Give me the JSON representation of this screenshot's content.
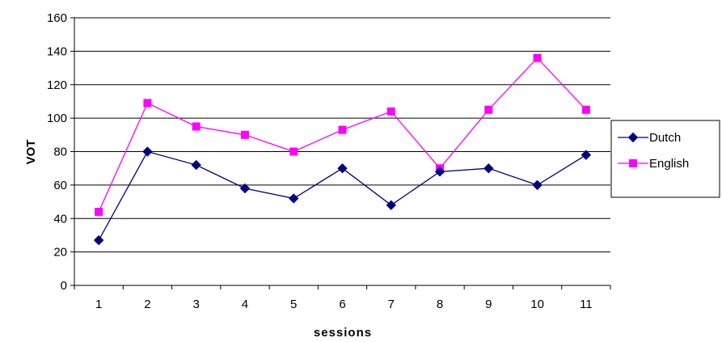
{
  "chart_data": {
    "type": "line",
    "title": "",
    "xlabel": "sessions",
    "ylabel": "VOT",
    "categories": [
      "1",
      "2",
      "3",
      "4",
      "5",
      "6",
      "7",
      "8",
      "9",
      "10",
      "11"
    ],
    "ylim": [
      0,
      160
    ],
    "yticks": [
      0,
      20,
      40,
      60,
      80,
      100,
      120,
      140,
      160
    ],
    "grid": "horizontal",
    "legend_position": "right",
    "series": [
      {
        "name": "Dutch",
        "color": "#000080",
        "marker": "diamond",
        "values": [
          27,
          80,
          72,
          58,
          52,
          70,
          48,
          68,
          70,
          60,
          78
        ]
      },
      {
        "name": "English",
        "color": "#FF00FF",
        "marker": "square",
        "values": [
          44,
          109,
          95,
          90,
          80,
          93,
          104,
          70,
          105,
          136,
          105
        ]
      }
    ]
  }
}
